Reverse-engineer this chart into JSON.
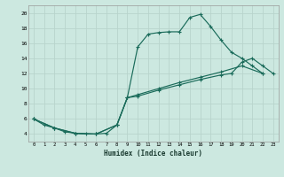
{
  "xlabel": "Humidex (Indice chaleur)",
  "bg_color": "#cce8e0",
  "grid_color": "#b8d4cc",
  "line_color": "#1a6b5a",
  "xlim": [
    -0.5,
    23.5
  ],
  "ylim": [
    3.0,
    21.0
  ],
  "xticks": [
    0,
    1,
    2,
    3,
    4,
    5,
    6,
    7,
    8,
    9,
    10,
    11,
    12,
    13,
    14,
    15,
    16,
    17,
    18,
    19,
    20,
    21,
    22,
    23
  ],
  "yticks": [
    4,
    6,
    8,
    10,
    12,
    14,
    16,
    18,
    20
  ],
  "curve1_x": [
    0,
    1,
    2,
    3,
    4,
    5,
    6,
    7,
    8,
    9,
    10,
    11,
    12,
    13,
    14,
    15,
    16,
    17,
    18,
    19,
    20,
    21,
    22
  ],
  "curve1_y": [
    6,
    5.2,
    4.8,
    4.3,
    4.1,
    4.0,
    4.0,
    4.1,
    5.2,
    8.8,
    15.5,
    17.2,
    17.4,
    17.5,
    17.5,
    19.4,
    19.8,
    18.2,
    16.4,
    14.8,
    14.0,
    13.0,
    12.0
  ],
  "curve2_x": [
    0,
    2,
    4,
    6,
    8,
    9,
    10,
    12,
    14,
    16,
    18,
    20,
    22
  ],
  "curve2_y": [
    6,
    4.8,
    4.1,
    4.0,
    5.2,
    8.8,
    9.2,
    10.0,
    10.8,
    11.5,
    12.2,
    13.0,
    12.0
  ],
  "curve3_x": [
    0,
    2,
    4,
    6,
    8,
    9,
    10,
    12,
    14,
    16,
    18,
    19,
    20,
    21,
    22,
    23
  ],
  "curve3_y": [
    6,
    4.8,
    4.1,
    4.0,
    5.2,
    8.8,
    9.0,
    9.8,
    10.5,
    11.2,
    11.8,
    12.0,
    13.5,
    14.0,
    13.0,
    12.0
  ]
}
